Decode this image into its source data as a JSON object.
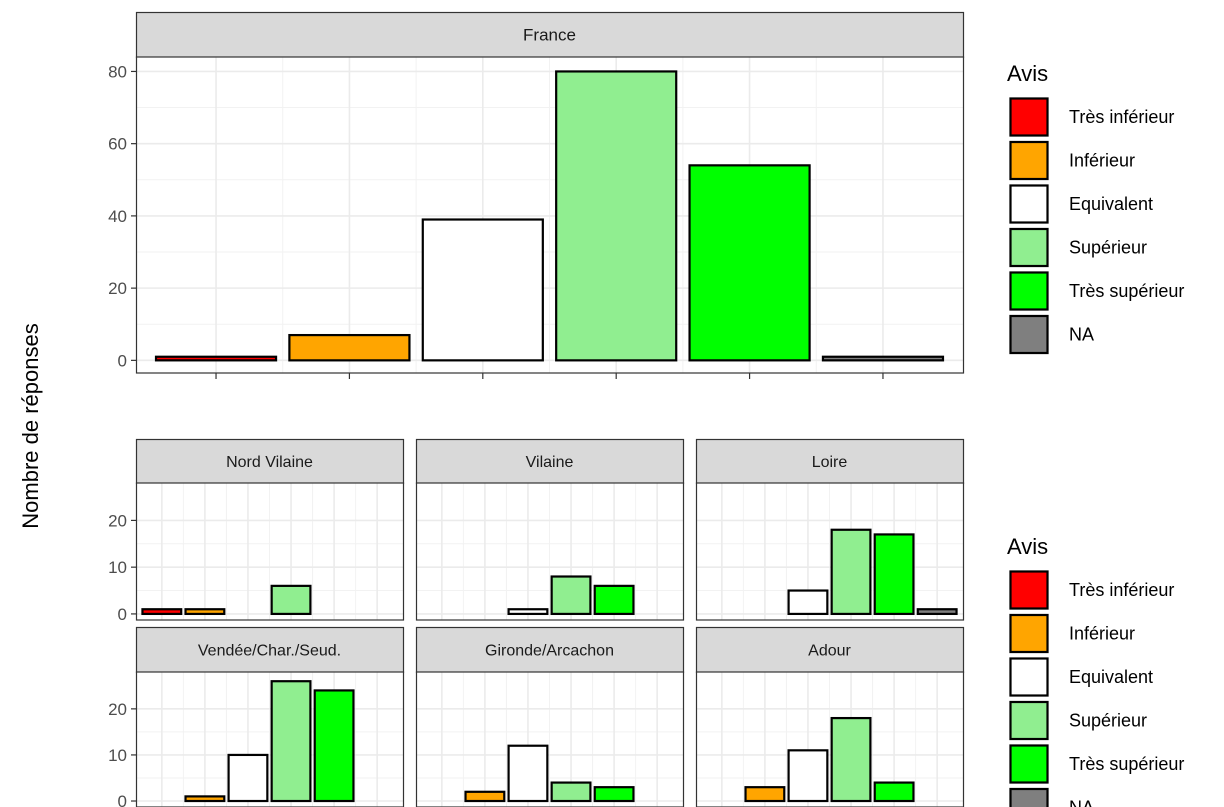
{
  "ylabel": "Nombre de réponses",
  "legend": {
    "title": "Avis",
    "entries": [
      {
        "label": "Très inférieur",
        "color": "#FF0000"
      },
      {
        "label": "Inférieur",
        "color": "#FFA500"
      },
      {
        "label": "Equivalent",
        "color": "#FFFFFF"
      },
      {
        "label": "Supérieur",
        "color": "#90EE90"
      },
      {
        "label": "Très supérieur",
        "color": "#00FF00"
      },
      {
        "label": "NA",
        "color": "#7F7F7F"
      }
    ]
  },
  "chart_data": [
    {
      "type": "bar",
      "title": "France",
      "categories": [
        "Très inférieur",
        "Inférieur",
        "Equivalent",
        "Supérieur",
        "Très supérieur",
        "NA"
      ],
      "values": [
        1,
        7,
        39,
        80,
        54,
        1
      ],
      "ylim": [
        -3.5,
        84
      ],
      "yticks": [
        0,
        20,
        40,
        60,
        80
      ],
      "grid": true
    },
    {
      "type": "bar",
      "title": "Nord Vilaine",
      "categories": [
        "Très inférieur",
        "Inférieur",
        "Equivalent",
        "Supérieur",
        "Très supérieur",
        "NA"
      ],
      "values": [
        1,
        1,
        0,
        6,
        0,
        0
      ],
      "ylim": [
        -1.3,
        28
      ],
      "yticks": [
        0,
        10,
        20
      ],
      "grid": true
    },
    {
      "type": "bar",
      "title": "Vilaine",
      "categories": [
        "Très inférieur",
        "Inférieur",
        "Equivalent",
        "Supérieur",
        "Très supérieur",
        "NA"
      ],
      "values": [
        0,
        0,
        1,
        8,
        6,
        0
      ],
      "ylim": [
        -1.3,
        28
      ],
      "yticks": [
        0,
        10,
        20
      ],
      "grid": true
    },
    {
      "type": "bar",
      "title": "Loire",
      "categories": [
        "Très inférieur",
        "Inférieur",
        "Equivalent",
        "Supérieur",
        "Très supérieur",
        "NA"
      ],
      "values": [
        0,
        0,
        5,
        18,
        17,
        1
      ],
      "ylim": [
        -1.3,
        28
      ],
      "yticks": [
        0,
        10,
        20
      ],
      "grid": true
    },
    {
      "type": "bar",
      "title": "Vendée/Char./Seud.",
      "categories": [
        "Très inférieur",
        "Inférieur",
        "Equivalent",
        "Supérieur",
        "Très supérieur",
        "NA"
      ],
      "values": [
        0,
        1,
        10,
        26,
        24,
        0
      ],
      "ylim": [
        -1.3,
        28
      ],
      "yticks": [
        0,
        10,
        20
      ],
      "grid": true
    },
    {
      "type": "bar",
      "title": "Gironde/Arcachon",
      "categories": [
        "Très inférieur",
        "Inférieur",
        "Equivalent",
        "Supérieur",
        "Très supérieur",
        "NA"
      ],
      "values": [
        0,
        2,
        12,
        4,
        3,
        0
      ],
      "ylim": [
        -1.3,
        28
      ],
      "yticks": [
        0,
        10,
        20
      ],
      "grid": true
    },
    {
      "type": "bar",
      "title": "Adour",
      "categories": [
        "Très inférieur",
        "Inférieur",
        "Equivalent",
        "Supérieur",
        "Très supérieur",
        "NA"
      ],
      "values": [
        0,
        3,
        11,
        18,
        4,
        0
      ],
      "ylim": [
        -1.3,
        28
      ],
      "yticks": [
        0,
        10,
        20
      ],
      "grid": true
    }
  ]
}
